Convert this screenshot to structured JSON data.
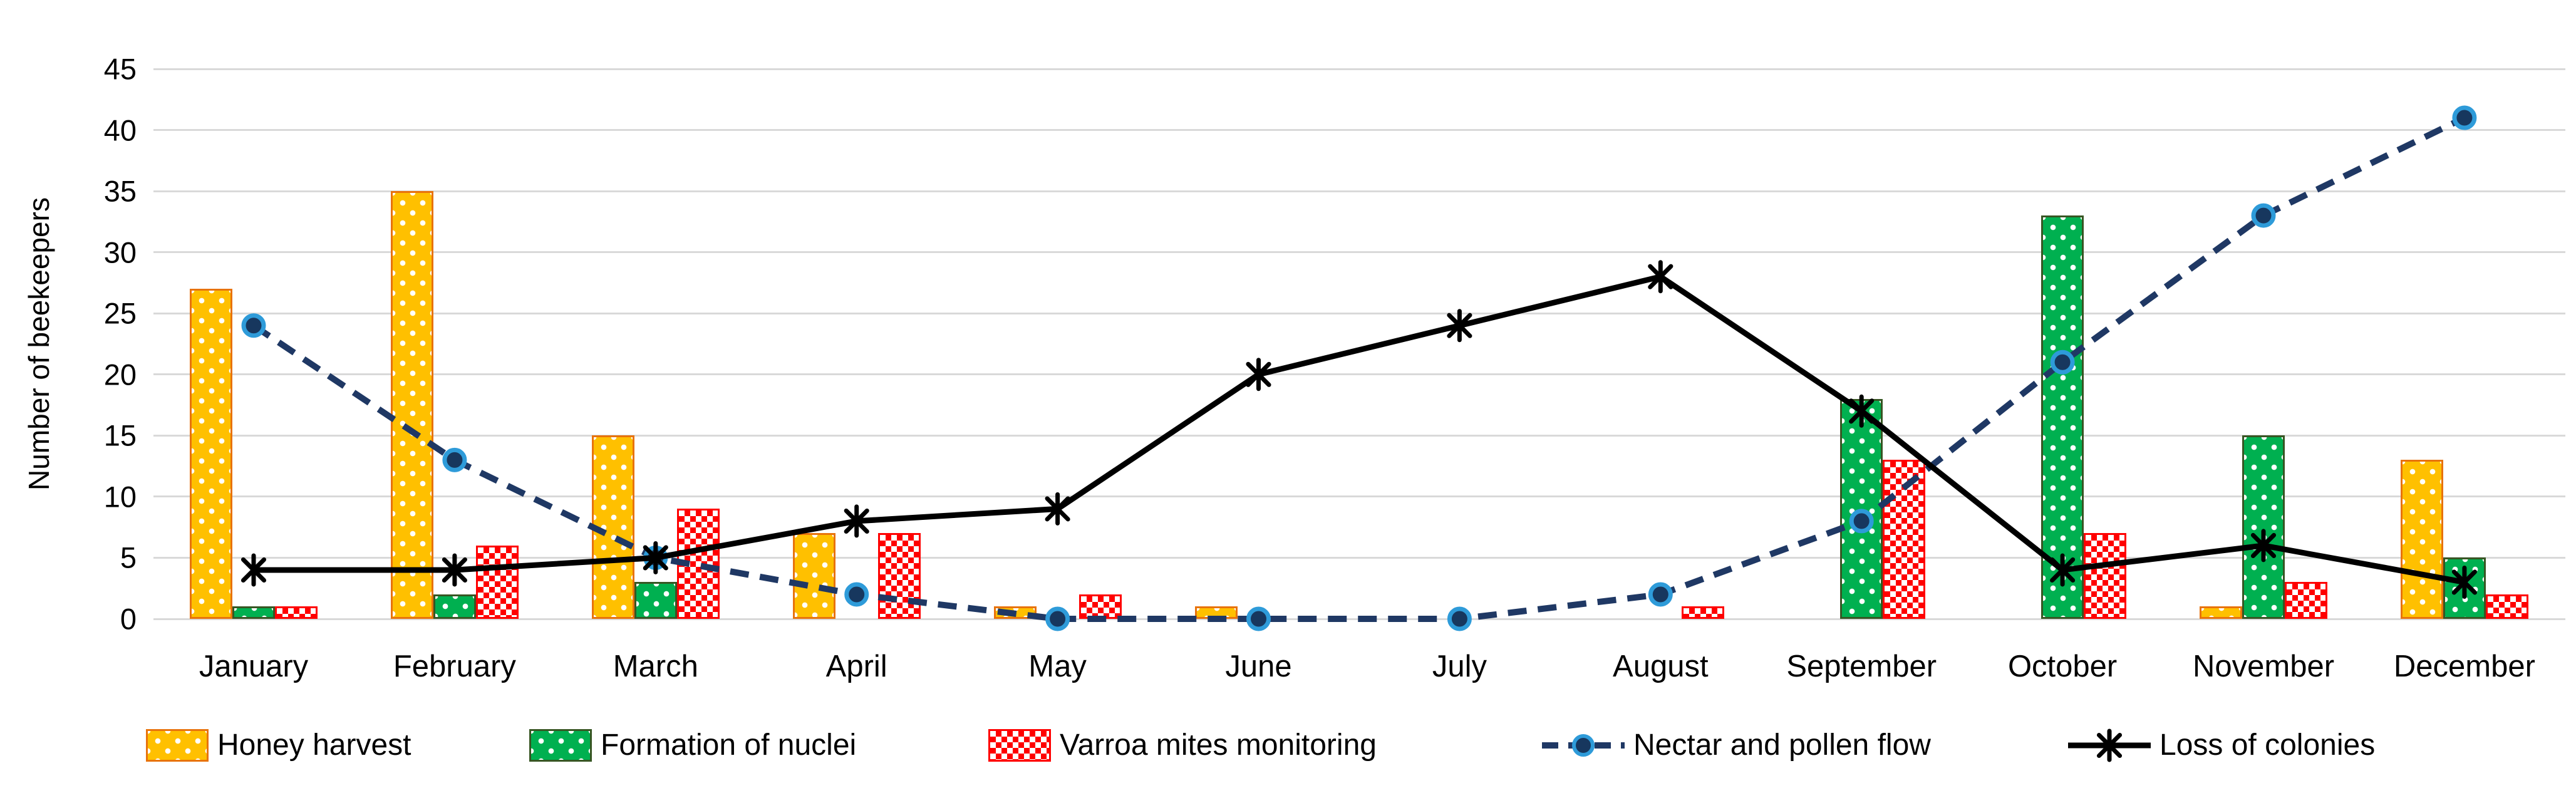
{
  "chart_data": {
    "type": "combo",
    "title": "",
    "ylabel": "Number of beekeepers",
    "xlabel": "",
    "ylim": [
      0,
      45
    ],
    "ytick_step": 5,
    "yticks": [
      0,
      5,
      10,
      15,
      20,
      25,
      30,
      35,
      40,
      45
    ],
    "grid": true,
    "gridline_color": "#D9D9D9",
    "legend_position": "bottom",
    "categories": [
      "January",
      "February",
      "March",
      "April",
      "May",
      "June",
      "July",
      "August",
      "September",
      "October",
      "November",
      "December"
    ],
    "series": [
      {
        "name": "Honey harvest",
        "type": "bar",
        "pattern": "dots",
        "fill": "#FFC000",
        "border": "#E8730C",
        "values": [
          27,
          35,
          15,
          7,
          1,
          1,
          0,
          0,
          0,
          0,
          1,
          13
        ]
      },
      {
        "name": "Formation of nuclei",
        "type": "bar",
        "pattern": "dots",
        "fill": "#00B050",
        "border": "#375623",
        "values": [
          1,
          2,
          3,
          0,
          0,
          0,
          0,
          0,
          18,
          33,
          15,
          5
        ]
      },
      {
        "name": "Varroa mites monitoring",
        "type": "bar",
        "pattern": "checker",
        "fill": "#FF0000",
        "border": "#FF0000",
        "values": [
          1,
          6,
          9,
          7,
          2,
          0,
          0,
          1,
          13,
          7,
          3,
          2
        ]
      },
      {
        "name": "Nectar and pollen flow",
        "type": "line",
        "style": "dashed",
        "color": "#1F3864",
        "marker": "circle",
        "marker_fill": "#17375E",
        "marker_ring": "#2E9BD9",
        "values": [
          24,
          13,
          5,
          2,
          0,
          0,
          0,
          2,
          8,
          21,
          33,
          41
        ]
      },
      {
        "name": "Loss of colonies",
        "type": "line",
        "style": "solid",
        "color": "#000000",
        "marker": "asterisk",
        "values": [
          4,
          4,
          5,
          8,
          9,
          20,
          24,
          28,
          17,
          4,
          6,
          3
        ]
      }
    ]
  }
}
